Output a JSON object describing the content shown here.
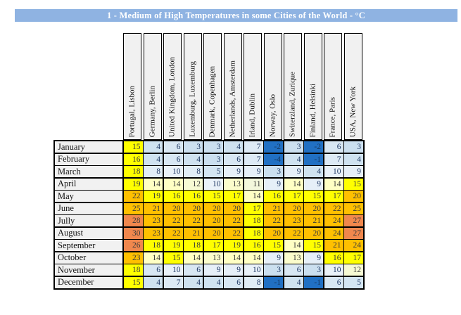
{
  "title": "1 - Medium of High Temperatures in some Cities of the World - °C",
  "banner": {
    "bg": "#8FB3E2",
    "text_color": "#FFFFFF"
  },
  "chart_data": {
    "type": "heatmap",
    "title": "1 - Medium of High Temperatures in some Cities of the World - °C",
    "unit": "°C",
    "columns": [
      "Portugal, Lisbon",
      "Germany, Berlin",
      "United Kingdom, London",
      "Luxemburg, Luxemburg",
      "Denmark, Copenhagen",
      "Netherlands, Amsterdam",
      "Irland, Dublin",
      "Norway, Oslo",
      "Switerzland, Zurique",
      "Finland, Helsinki",
      "France, Paris",
      "USA, New York"
    ],
    "rows": [
      "January",
      "February",
      "March",
      "April",
      "May",
      "June",
      "Jully",
      "August",
      "September",
      "October",
      "November",
      "December"
    ],
    "values": [
      [
        15,
        4,
        6,
        3,
        3,
        4,
        7,
        -2,
        3,
        -2,
        6,
        3
      ],
      [
        16,
        4,
        6,
        4,
        3,
        6,
        7,
        -4,
        4,
        -1,
        7,
        4
      ],
      [
        18,
        8,
        10,
        8,
        5,
        9,
        9,
        3,
        9,
        4,
        10,
        9
      ],
      [
        19,
        14,
        14,
        12,
        10,
        13,
        11,
        9,
        14,
        9,
        14,
        15
      ],
      [
        22,
        19,
        16,
        16,
        15,
        17,
        14,
        16,
        17,
        15,
        17,
        20
      ],
      [
        25,
        21,
        20,
        20,
        20,
        20,
        17,
        21,
        20,
        20,
        22,
        25
      ],
      [
        28,
        23,
        22,
        22,
        20,
        22,
        18,
        22,
        23,
        21,
        24,
        27
      ],
      [
        30,
        23,
        22,
        21,
        20,
        22,
        18,
        20,
        22,
        20,
        24,
        27
      ],
      [
        26,
        18,
        19,
        18,
        17,
        19,
        16,
        15,
        14,
        15,
        21,
        24
      ],
      [
        23,
        14,
        15,
        14,
        13,
        14,
        14,
        9,
        13,
        9,
        16,
        17
      ],
      [
        18,
        6,
        10,
        6,
        9,
        9,
        10,
        3,
        6,
        3,
        10,
        12
      ],
      [
        15,
        4,
        7,
        4,
        4,
        6,
        8,
        -1,
        4,
        -1,
        6,
        5
      ]
    ],
    "color_scale": {
      "negative_bg": "#2170C3",
      "negative_text": "#17375E",
      "cold_low": "#BDD7EA",
      "cold_high": "#EAF2F9",
      "cold_text": "#1F3864",
      "mild_low": "#F3F7DC",
      "mild_high": "#FFFFC4",
      "warm": "#FFFF00",
      "hot": "#FFC000",
      "very_hot": "#F0874D",
      "warm_text": "#3B3B3B",
      "bins_legend": "v<0 dark blue; 0-10 light blue gradient; 11-14 pale yellow gradient; 15-19 yellow; 20-25 orange; >=26 dark orange"
    }
  }
}
